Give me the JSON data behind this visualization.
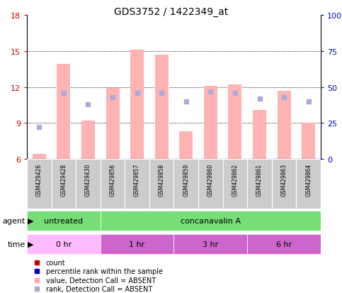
{
  "title": "GDS3752 / 1422349_at",
  "samples": [
    "GSM429426",
    "GSM429428",
    "GSM429430",
    "GSM429856",
    "GSM429857",
    "GSM429858",
    "GSM429859",
    "GSM429860",
    "GSM429862",
    "GSM429861",
    "GSM429863",
    "GSM429864"
  ],
  "bar_values": [
    6.4,
    13.9,
    9.2,
    11.9,
    15.1,
    14.7,
    8.3,
    12.1,
    12.2,
    10.1,
    11.7,
    9.0
  ],
  "rank_pct": [
    22,
    46,
    38,
    43,
    46,
    46,
    40,
    47,
    46,
    42,
    43,
    40
  ],
  "ylim_left": [
    6,
    18
  ],
  "ylim_right": [
    0,
    100
  ],
  "yticks_left": [
    6,
    9,
    12,
    15,
    18
  ],
  "yticks_right": [
    0,
    25,
    50,
    75,
    100
  ],
  "ytick_labels_right": [
    "0",
    "25",
    "50",
    "75",
    "100%"
  ],
  "bar_color": "#ffb3b3",
  "rank_color": "#aaaadd",
  "agent_groups": [
    {
      "label": "untreated",
      "cols": [
        0,
        1,
        2
      ],
      "color": "#77dd77"
    },
    {
      "label": "concanavalin A",
      "cols": [
        3,
        4,
        5,
        6,
        7,
        8,
        9,
        10,
        11
      ],
      "color": "#77dd77"
    }
  ],
  "time_groups": [
    {
      "label": "0 hr",
      "cols": [
        0,
        1,
        2
      ],
      "color": "#ffbbff"
    },
    {
      "label": "1 hr",
      "cols": [
        3,
        4,
        5
      ],
      "color": "#cc66cc"
    },
    {
      "label": "3 hr",
      "cols": [
        6,
        7,
        8
      ],
      "color": "#cc66cc"
    },
    {
      "label": "6 hr",
      "cols": [
        9,
        10,
        11
      ],
      "color": "#cc66cc"
    }
  ],
  "legend_items": [
    {
      "label": "count",
      "color": "#cc0000"
    },
    {
      "label": "percentile rank within the sample",
      "color": "#0000cc"
    },
    {
      "label": "value, Detection Call = ABSENT",
      "color": "#ffaaaa"
    },
    {
      "label": "rank, Detection Call = ABSENT",
      "color": "#aaaacc"
    }
  ],
  "left_tick_color": "#cc0000",
  "right_tick_color": "#0000cc",
  "sample_bg_color": "#cccccc",
  "n_samples": 12
}
